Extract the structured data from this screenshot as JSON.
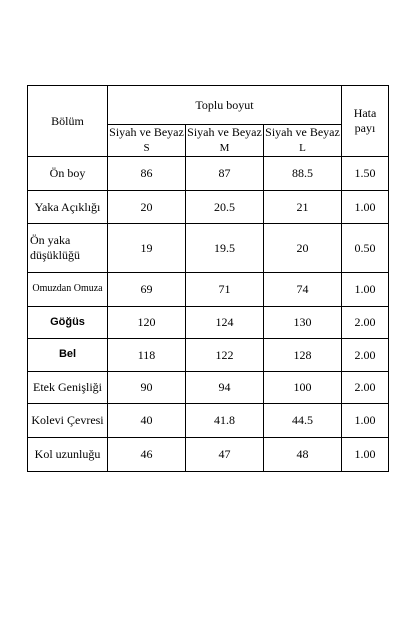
{
  "table": {
    "header": {
      "section_label": "Bölüm",
      "group_label": "Toplu boyut",
      "tolerance_label": "Hata payı",
      "columns": [
        {
          "color": "Siyah ve Beyaz",
          "size": "S"
        },
        {
          "color": "Siyah ve Beyaz",
          "size": "M"
        },
        {
          "color": "Siyah ve Beyaz",
          "size": "L"
        }
      ]
    },
    "rows": [
      {
        "label": "Ön boy",
        "s": "86",
        "m": "87",
        "l": "88.5",
        "tol": "1.50"
      },
      {
        "label": "Yaka Açıklığı",
        "s": "20",
        "m": "20.5",
        "l": "21",
        "tol": "1.00"
      },
      {
        "label": "Ön yaka düşüklüğü",
        "s": "19",
        "m": "19.5",
        "l": "20",
        "tol": "0.50"
      },
      {
        "label": "Omuzdan Omuza",
        "s": "69",
        "m": "71",
        "l": "74",
        "tol": "1.00"
      },
      {
        "label": "Göğüs",
        "s": "120",
        "m": "124",
        "l": "130",
        "tol": "2.00"
      },
      {
        "label": "Bel",
        "s": "118",
        "m": "122",
        "l": "128",
        "tol": "2.00"
      },
      {
        "label": "Etek Genişliği",
        "s": "90",
        "m": "94",
        "l": "100",
        "tol": "2.00"
      },
      {
        "label": "Kolevi Çevresi",
        "s": "40",
        "m": "41.8",
        "l": "44.5",
        "tol": "1.00"
      },
      {
        "label": "Kol uzunluğu",
        "s": "46",
        "m": "47",
        "l": "48",
        "tol": "1.00"
      }
    ]
  }
}
